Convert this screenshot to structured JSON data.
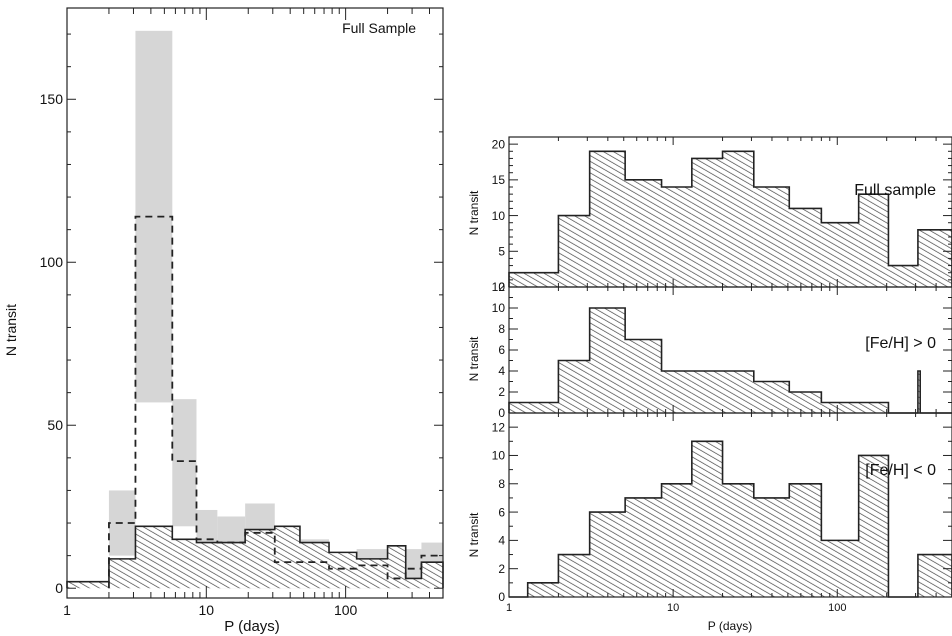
{
  "chart_data": [
    {
      "type": "bar",
      "xscale": "log",
      "xlim": [
        1,
        500
      ],
      "ylim": [
        -3,
        178
      ],
      "xlabel": "P (days)",
      "ylabel": "N transit",
      "label": "Full Sample",
      "x_ticks": [
        1,
        10,
        100
      ],
      "x_tick_labels": [
        "1",
        "10",
        "100"
      ],
      "y_ticks": [
        0,
        50,
        100,
        150
      ],
      "y_tick_labels": [
        "0",
        "50",
        "100",
        "150"
      ],
      "bin_edges": [
        1,
        2,
        3.1,
        5.7,
        8.5,
        12,
        19,
        31,
        47,
        76,
        120,
        200,
        270,
        350,
        500
      ],
      "series": [
        {
          "values": [
            2,
            9,
            19,
            15,
            14,
            14,
            18,
            19,
            14,
            11,
            9,
            13,
            3,
            8
          ],
          "style": "hatched-solid"
        },
        {
          "values": [
            null,
            20,
            114,
            39,
            15,
            14,
            17,
            8,
            8,
            6,
            7,
            3,
            6,
            10
          ],
          "style": "dashed"
        },
        {
          "lower": [
            null,
            10,
            57,
            19,
            1,
            0,
            0,
            0,
            0,
            0,
            0,
            0,
            0,
            0
          ],
          "upper": [
            null,
            30,
            171,
            58,
            24,
            22,
            26,
            14,
            15,
            11,
            12,
            9,
            12,
            14
          ],
          "style": "grey-band"
        }
      ],
      "colors": {
        "band": "#d6d6d6",
        "line": "#222222",
        "hatch": "#444444"
      }
    },
    {
      "type": "bar",
      "xscale": "log",
      "xlim": [
        1,
        500
      ],
      "ylim": [
        0,
        21
      ],
      "ylabel": "N transit",
      "label": "Full sample",
      "y_ticks": [
        0,
        5,
        10,
        15,
        20
      ],
      "y_tick_labels": [
        "0",
        "5",
        "10",
        "15",
        "20"
      ],
      "bin_edges": [
        1,
        2,
        3.1,
        5.1,
        8.5,
        13,
        20,
        31,
        51,
        80,
        135,
        205,
        310,
        500
      ],
      "values": [
        2,
        10,
        19,
        15,
        14,
        18,
        19,
        14,
        11,
        9,
        13,
        3,
        8
      ]
    },
    {
      "type": "bar",
      "xscale": "log",
      "xlim": [
        1,
        500
      ],
      "ylim": [
        0,
        12
      ],
      "ylabel": "N transit",
      "label": "[Fe/H] > 0",
      "y_ticks": [
        0,
        2,
        4,
        6,
        8,
        10,
        12
      ],
      "y_tick_labels": [
        "0",
        "2",
        "4",
        "6",
        "8",
        "10",
        "12"
      ],
      "bin_edges": [
        1,
        2,
        3.1,
        5.1,
        8.5,
        13,
        20,
        31,
        51,
        80,
        135,
        205,
        310,
        320,
        500
      ],
      "values": [
        1,
        5,
        10,
        7,
        4,
        4,
        4,
        3,
        2,
        1,
        1,
        0,
        4,
        0
      ]
    },
    {
      "type": "bar",
      "xscale": "log",
      "xlim": [
        1,
        500
      ],
      "ylim": [
        0,
        13
      ],
      "xlabel": "P (days)",
      "ylabel": "N transit",
      "label": "[Fe/H] < 0",
      "x_ticks": [
        1,
        10,
        100
      ],
      "x_tick_labels": [
        "1",
        "10",
        "100"
      ],
      "y_ticks": [
        0,
        2,
        4,
        6,
        8,
        10,
        12
      ],
      "y_tick_labels": [
        "0",
        "2",
        "4",
        "6",
        "8",
        "10",
        "12"
      ],
      "bin_edges": [
        1,
        1.3,
        2,
        3.1,
        5.1,
        8.5,
        13,
        20,
        31,
        51,
        80,
        135,
        205,
        310,
        500
      ],
      "values": [
        0,
        1,
        3,
        6,
        7,
        8,
        11,
        8,
        7,
        8,
        4,
        10,
        0,
        3
      ]
    }
  ]
}
